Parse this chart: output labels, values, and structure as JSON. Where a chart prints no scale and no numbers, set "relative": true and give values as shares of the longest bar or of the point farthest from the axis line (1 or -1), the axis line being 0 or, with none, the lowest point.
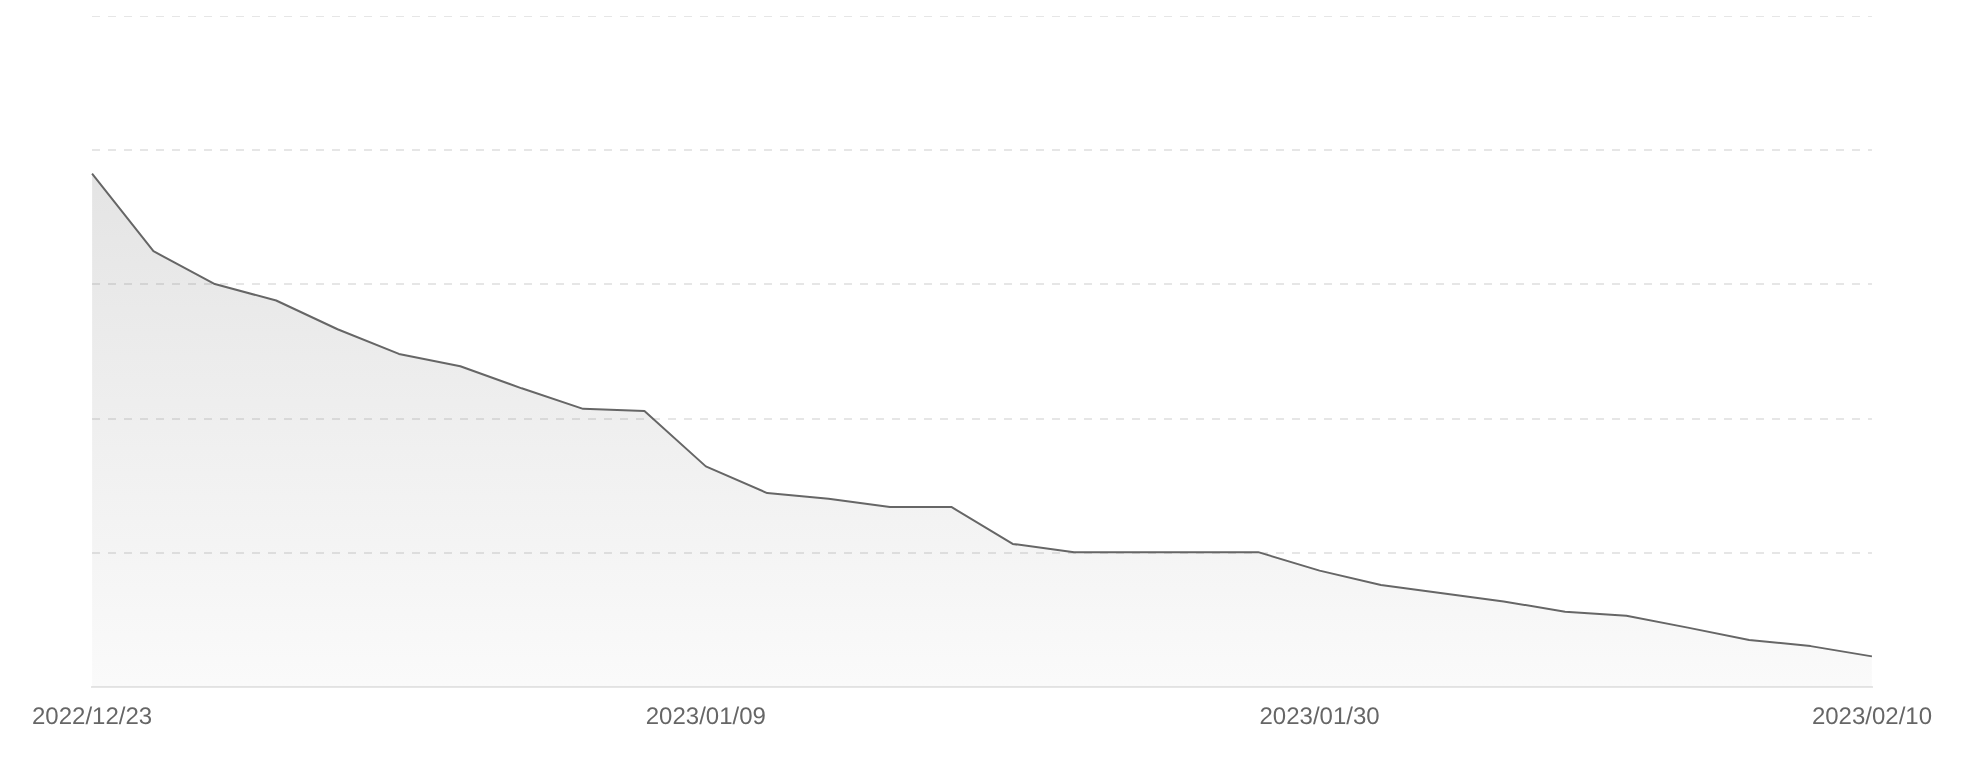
{
  "chart_data": {
    "type": "area",
    "relative": true,
    "grid": "y",
    "legend": false,
    "tick_labels": "x",
    "categories": [
      "2022/12/23",
      null,
      null,
      null,
      null,
      null,
      null,
      null,
      null,
      null,
      "2023/01/09",
      null,
      null,
      null,
      null,
      null,
      null,
      null,
      null,
      null,
      "2023/01/30",
      null,
      null,
      null,
      null,
      null,
      null,
      null,
      null,
      "2023/02/10"
    ],
    "series": [
      {
        "color": "#666666",
        "values": [
          1,
          0.849,
          0.785,
          0.753,
          0.697,
          0.649,
          0.625,
          0.582,
          0.542,
          0.538,
          0.43,
          0.378,
          0.367,
          0.351,
          0.351,
          0.279,
          0.263,
          0.263,
          0.263,
          0.263,
          0.227,
          0.199,
          0.183,
          0.167,
          0.147,
          0.139,
          0.116,
          0.092,
          0.08,
          0.06
        ]
      }
    ]
  }
}
